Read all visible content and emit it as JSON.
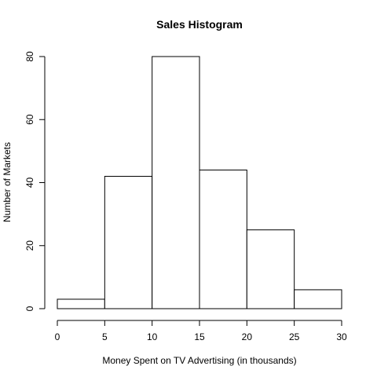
{
  "chart_data": {
    "type": "bar",
    "title": "Sales Histogram",
    "xlabel": "Money Spent on TV Advertising (in thousands)",
    "ylabel": "Number of Markets",
    "bins": [
      [
        0,
        5
      ],
      [
        5,
        10
      ],
      [
        10,
        15
      ],
      [
        15,
        20
      ],
      [
        20,
        25
      ],
      [
        25,
        30
      ]
    ],
    "values": [
      3,
      42,
      80,
      44,
      25,
      6
    ],
    "xlim": [
      0,
      30
    ],
    "ylim": [
      0,
      80
    ],
    "x_ticks": [
      "0",
      "5",
      "10",
      "15",
      "20",
      "25",
      "30"
    ],
    "y_ticks": [
      "0",
      "20",
      "40",
      "60",
      "80"
    ],
    "grid": false,
    "colors": {
      "bar_fill": "#ffffff",
      "bar_stroke": "#000000",
      "axis": "#000000"
    }
  }
}
